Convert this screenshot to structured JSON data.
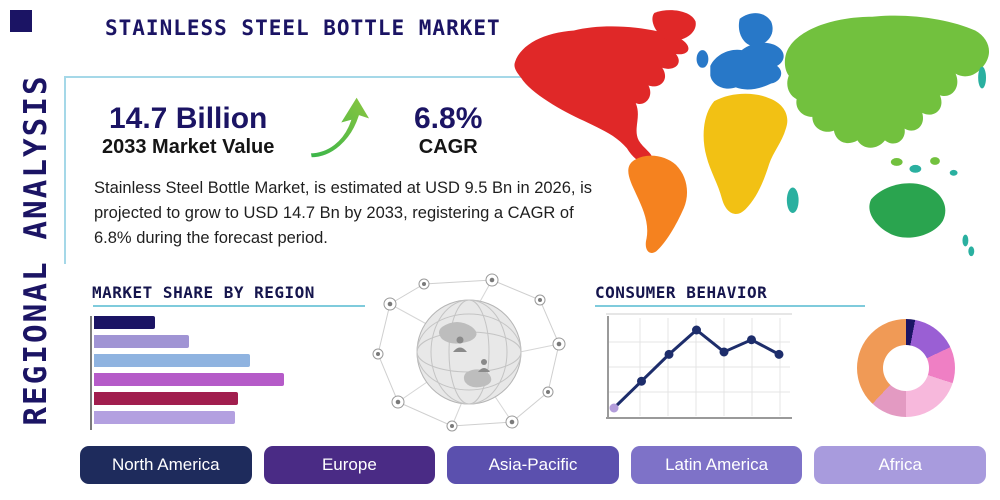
{
  "header": {
    "title": "STAINLESS STEEL BOTTLE MARKET",
    "side_label": "REGIONAL ANALYSIS"
  },
  "stats": {
    "market_value": "14.7 Billion",
    "market_value_label": "2033 Market Value",
    "cagr_value": "6.8%",
    "cagr_label": "CAGR",
    "description": "Stainless Steel Bottle Market, is estimated at USD 9.5 Bn in 2026, is projected to grow to USD 14.7 Bn by 2033, registering a CAGR of 6.8% during the forecast period."
  },
  "sections": {
    "market_share_title": "MARKET SHARE BY REGION",
    "consumer_behavior_title": "CONSUMER BEHAVIOR"
  },
  "region_buttons": [
    {
      "label": "North America",
      "color": "#1e2b5c"
    },
    {
      "label": "Europe",
      "color": "#4a2b85"
    },
    {
      "label": "Asia-Pacific",
      "color": "#5b50ae"
    },
    {
      "label": "Latin America",
      "color": "#7e72c8"
    },
    {
      "label": "Africa",
      "color": "#a89bdd"
    }
  ],
  "colors": {
    "accent_navy": "#1b1464",
    "underline_teal": "#7fcbdc",
    "map": {
      "north_america": "#e02828",
      "south_america": "#f5821f",
      "europe": "#2878c8",
      "africa": "#f2c114",
      "asia": "#72c13e",
      "australia": "#2aa44f",
      "islands_teal": "#2ab0a0"
    }
  },
  "chart_data": [
    {
      "id": "market_share_bars",
      "type": "bar",
      "title": "Market Share by Region",
      "orientation": "horizontal",
      "categories": [
        "",
        "",
        "",
        "",
        "",
        ""
      ],
      "series": [
        {
          "value": 32,
          "color": "#1b1464"
        },
        {
          "value": 50,
          "color": "#a094d4"
        },
        {
          "value": 82,
          "color": "#8fb3e0"
        },
        {
          "value": 100,
          "color": "#b55bc8"
        },
        {
          "value": 76,
          "color": "#a11e4e"
        },
        {
          "value": 74,
          "color": "#b3a0e0"
        }
      ]
    },
    {
      "id": "consumer_behavior_line",
      "type": "line",
      "title": "Consumer Behavior",
      "points": [
        {
          "x": 0,
          "y": 1.0
        },
        {
          "x": 1,
          "y": 2.1
        },
        {
          "x": 2,
          "y": 3.2
        },
        {
          "x": 3,
          "y": 4.2
        },
        {
          "x": 4,
          "y": 3.3
        },
        {
          "x": 5,
          "y": 3.8
        },
        {
          "x": 6,
          "y": 3.2
        }
      ],
      "line_color": "#1d2d6b",
      "first_marker_color": "#b39ddb"
    },
    {
      "id": "regional_donut",
      "type": "pie",
      "title": "Regional split donut",
      "segments": [
        {
          "value": 3,
          "color": "#1b1464"
        },
        {
          "value": 15,
          "color": "#9a5fd4"
        },
        {
          "value": 12,
          "color": "#ef7fc4"
        },
        {
          "value": 20,
          "color": "#f7b8dc"
        },
        {
          "value": 12,
          "color": "#e39ac2"
        },
        {
          "value": 38,
          "color": "#f09a56"
        }
      ]
    }
  ]
}
